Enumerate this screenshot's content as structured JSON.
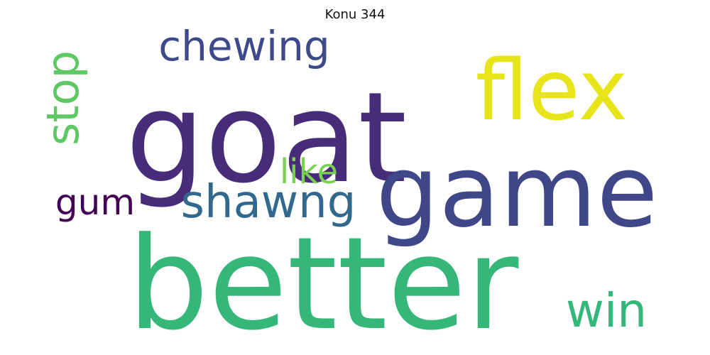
{
  "title": "Konu 344",
  "words": [
    {
      "text": "goat",
      "color": "#472c7a"
    },
    {
      "text": "flex",
      "color": "#e7e419"
    },
    {
      "text": "game",
      "color": "#3f4788"
    },
    {
      "text": "better",
      "color": "#35b779"
    },
    {
      "text": "chewing",
      "color": "#3e4989"
    },
    {
      "text": "stop",
      "color": "#5ec962"
    },
    {
      "text": "like",
      "color": "#7ad151"
    },
    {
      "text": "shawng",
      "color": "#31688e"
    },
    {
      "text": "gum",
      "color": "#440154"
    },
    {
      "text": "win",
      "color": "#35b779"
    }
  ]
}
